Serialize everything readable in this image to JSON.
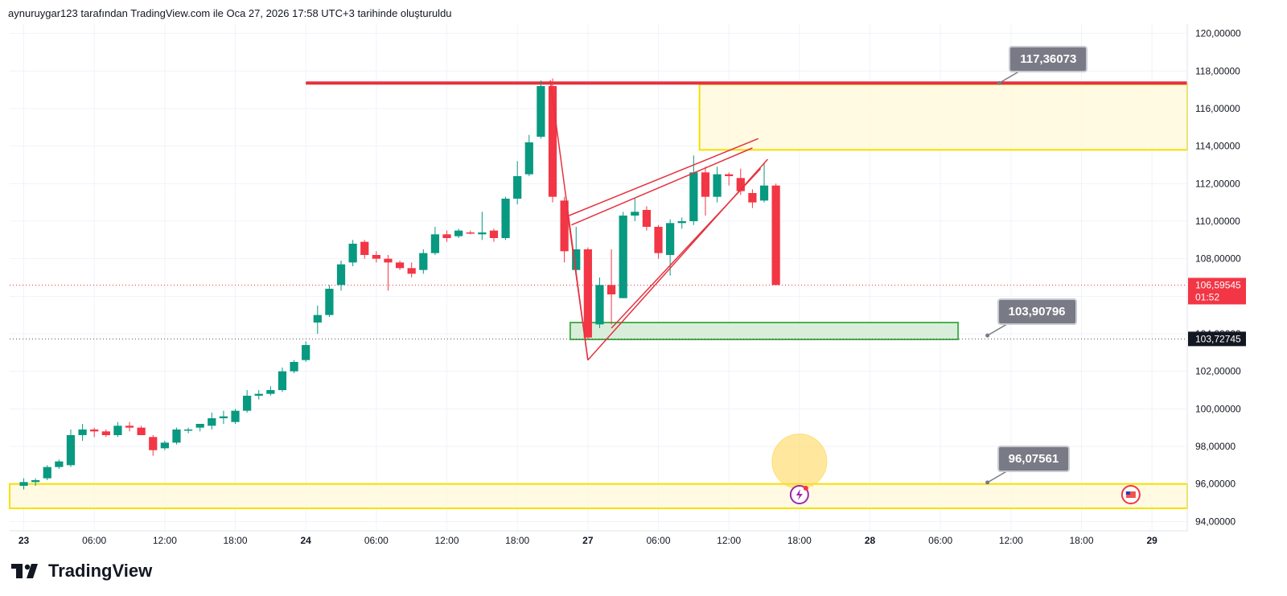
{
  "header": {
    "text": "aynuruygar123 tarafından TradingView.com ile Oca 27, 2026 17:58 UTC+3 tarihinde oluşturuldu"
  },
  "footer": {
    "brand": "TradingView"
  },
  "colors": {
    "up": "#089981",
    "down": "#f23645",
    "zone_yellow": "#fff9dc",
    "zone_yellow_border": "#f5e000",
    "zone_green": "#d5ecd6",
    "zone_green_border": "#4caf50",
    "resistance": "#e5323f"
  },
  "chart_data": {
    "type": "candlestick",
    "ylim": [
      93.5,
      120.5
    ],
    "price_ticks": [
      "120,00000",
      "118,00000",
      "116,00000",
      "114,00000",
      "112,00000",
      "110,00000",
      "108,00000",
      "106,00000",
      "104,00000",
      "102,00000",
      "100,00000",
      "98,00000",
      "96,00000",
      "94,00000"
    ],
    "price_tick_values": [
      120,
      118,
      116,
      114,
      112,
      110,
      108,
      106,
      104,
      102,
      100,
      98,
      96,
      94
    ],
    "time_ticks": [
      {
        "label": "23",
        "day": true,
        "x": 0
      },
      {
        "label": "06:00",
        "x": 6
      },
      {
        "label": "12:00",
        "x": 12
      },
      {
        "label": "18:00",
        "x": 18
      },
      {
        "label": "24",
        "day": true,
        "x": 24
      },
      {
        "label": "06:00",
        "x": 30
      },
      {
        "label": "12:00",
        "x": 36
      },
      {
        "label": "18:00",
        "x": 42
      },
      {
        "label": "27",
        "day": true,
        "x": 48
      },
      {
        "label": "06:00",
        "x": 54
      },
      {
        "label": "12:00",
        "x": 60
      },
      {
        "label": "18:00",
        "x": 66
      },
      {
        "label": "28",
        "day": true,
        "x": 72
      },
      {
        "label": "06:00",
        "x": 78
      },
      {
        "label": "12:00",
        "x": 84
      },
      {
        "label": "18:00",
        "x": 90
      },
      {
        "label": "29",
        "day": true,
        "x": 96
      }
    ],
    "xlim": [
      -1.2,
      99
    ],
    "candles": [
      {
        "x": 0,
        "o": 95.9,
        "h": 96.3,
        "l": 95.7,
        "c": 96.1
      },
      {
        "x": 1,
        "o": 96.1,
        "h": 96.3,
        "l": 95.9,
        "c": 96.2
      },
      {
        "x": 2,
        "o": 96.3,
        "h": 97.0,
        "l": 96.2,
        "c": 96.9
      },
      {
        "x": 3,
        "o": 96.9,
        "h": 97.3,
        "l": 96.8,
        "c": 97.2
      },
      {
        "x": 4,
        "o": 97.0,
        "h": 98.9,
        "l": 96.9,
        "c": 98.6
      },
      {
        "x": 5,
        "o": 98.6,
        "h": 99.2,
        "l": 98.3,
        "c": 98.9
      },
      {
        "x": 6,
        "o": 98.9,
        "h": 99.0,
        "l": 98.5,
        "c": 98.8
      },
      {
        "x": 7,
        "o": 98.8,
        "h": 98.9,
        "l": 98.5,
        "c": 98.6
      },
      {
        "x": 8,
        "o": 98.6,
        "h": 99.3,
        "l": 98.5,
        "c": 99.1
      },
      {
        "x": 9,
        "o": 99.1,
        "h": 99.3,
        "l": 98.8,
        "c": 99.0
      },
      {
        "x": 10,
        "o": 99.0,
        "h": 99.1,
        "l": 98.8,
        "c": 98.6
      },
      {
        "x": 11,
        "o": 98.5,
        "h": 98.6,
        "l": 97.5,
        "c": 97.8
      },
      {
        "x": 12,
        "o": 97.9,
        "h": 98.3,
        "l": 97.8,
        "c": 98.2
      },
      {
        "x": 13,
        "o": 98.2,
        "h": 99.0,
        "l": 98.1,
        "c": 98.9
      },
      {
        "x": 14,
        "o": 98.9,
        "h": 99.0,
        "l": 98.7,
        "c": 98.9
      },
      {
        "x": 15,
        "o": 99.0,
        "h": 99.2,
        "l": 98.8,
        "c": 99.2
      },
      {
        "x": 16,
        "o": 99.1,
        "h": 99.8,
        "l": 98.9,
        "c": 99.5
      },
      {
        "x": 17,
        "o": 99.5,
        "h": 99.9,
        "l": 99.2,
        "c": 99.6
      },
      {
        "x": 18,
        "o": 99.3,
        "h": 100.0,
        "l": 99.2,
        "c": 99.9
      },
      {
        "x": 19,
        "o": 99.9,
        "h": 101.0,
        "l": 99.8,
        "c": 100.7
      },
      {
        "x": 20,
        "o": 100.7,
        "h": 101.0,
        "l": 100.5,
        "c": 100.8
      },
      {
        "x": 21,
        "o": 100.8,
        "h": 101.2,
        "l": 100.7,
        "c": 101.0
      },
      {
        "x": 22,
        "o": 101.0,
        "h": 102.2,
        "l": 100.9,
        "c": 102.0
      },
      {
        "x": 23,
        "o": 102.0,
        "h": 102.6,
        "l": 101.9,
        "c": 102.5
      },
      {
        "x": 24,
        "o": 102.6,
        "h": 103.6,
        "l": 102.5,
        "c": 103.4
      },
      {
        "x": 25,
        "o": 104.6,
        "h": 105.5,
        "l": 104.0,
        "c": 105.0
      },
      {
        "x": 26,
        "o": 105.0,
        "h": 106.6,
        "l": 104.9,
        "c": 106.4
      },
      {
        "x": 27,
        "o": 106.6,
        "h": 107.9,
        "l": 106.3,
        "c": 107.7
      },
      {
        "x": 28,
        "o": 107.8,
        "h": 109.0,
        "l": 107.6,
        "c": 108.8
      },
      {
        "x": 29,
        "o": 108.9,
        "h": 109.0,
        "l": 108.0,
        "c": 108.2
      },
      {
        "x": 30,
        "o": 108.2,
        "h": 108.4,
        "l": 107.8,
        "c": 108.0
      },
      {
        "x": 31,
        "o": 108.0,
        "h": 108.2,
        "l": 106.3,
        "c": 107.8
      },
      {
        "x": 32,
        "o": 107.8,
        "h": 107.9,
        "l": 107.4,
        "c": 107.5
      },
      {
        "x": 33,
        "o": 107.5,
        "h": 107.8,
        "l": 107.0,
        "c": 107.2
      },
      {
        "x": 34,
        "o": 107.4,
        "h": 108.5,
        "l": 107.2,
        "c": 108.3
      },
      {
        "x": 35,
        "o": 108.3,
        "h": 109.7,
        "l": 108.2,
        "c": 109.3
      },
      {
        "x": 36,
        "o": 109.3,
        "h": 109.5,
        "l": 108.9,
        "c": 109.1
      },
      {
        "x": 37,
        "o": 109.2,
        "h": 109.6,
        "l": 109.1,
        "c": 109.5
      },
      {
        "x": 38,
        "o": 109.4,
        "h": 109.5,
        "l": 109.3,
        "c": 109.35
      },
      {
        "x": 39,
        "o": 109.3,
        "h": 110.5,
        "l": 109.0,
        "c": 109.4
      },
      {
        "x": 40,
        "o": 109.5,
        "h": 109.6,
        "l": 108.9,
        "c": 109.1
      },
      {
        "x": 41,
        "o": 109.1,
        "h": 111.3,
        "l": 109.0,
        "c": 111.2
      },
      {
        "x": 42,
        "o": 111.2,
        "h": 113.2,
        "l": 110.9,
        "c": 112.4
      },
      {
        "x": 43,
        "o": 112.5,
        "h": 114.6,
        "l": 112.4,
        "c": 114.2
      },
      {
        "x": 44,
        "o": 114.5,
        "h": 117.5,
        "l": 114.4,
        "c": 117.2
      },
      {
        "x": 45,
        "o": 117.2,
        "h": 117.6,
        "l": 111.0,
        "c": 111.3
      },
      {
        "x": 46,
        "o": 111.1,
        "h": 111.3,
        "l": 107.8,
        "c": 108.4
      },
      {
        "x": 47,
        "o": 107.4,
        "h": 109.7,
        "l": 107.3,
        "c": 108.5
      },
      {
        "x": 48,
        "o": 108.5,
        "h": 108.6,
        "l": 103.7,
        "c": 103.8
      },
      {
        "x": 49,
        "o": 104.5,
        "h": 107.0,
        "l": 104.3,
        "c": 106.6
      },
      {
        "x": 50,
        "o": 106.6,
        "h": 108.5,
        "l": 104.5,
        "c": 106.1
      },
      {
        "x": 51,
        "o": 105.9,
        "h": 110.5,
        "l": 105.9,
        "c": 110.3
      },
      {
        "x": 52,
        "o": 110.3,
        "h": 111.2,
        "l": 110.0,
        "c": 110.5
      },
      {
        "x": 53,
        "o": 110.6,
        "h": 110.8,
        "l": 109.5,
        "c": 109.7
      },
      {
        "x": 54,
        "o": 109.7,
        "h": 109.8,
        "l": 108.0,
        "c": 108.3
      },
      {
        "x": 55,
        "o": 108.2,
        "h": 110.1,
        "l": 107.1,
        "c": 109.9
      },
      {
        "x": 56,
        "o": 109.9,
        "h": 110.2,
        "l": 109.6,
        "c": 110.0
      },
      {
        "x": 57,
        "o": 110.0,
        "h": 113.5,
        "l": 109.8,
        "c": 112.6
      },
      {
        "x": 58,
        "o": 112.6,
        "h": 112.9,
        "l": 110.3,
        "c": 111.3
      },
      {
        "x": 59,
        "o": 111.3,
        "h": 112.9,
        "l": 111.0,
        "c": 112.5
      },
      {
        "x": 60,
        "o": 112.5,
        "h": 112.6,
        "l": 111.9,
        "c": 112.4
      },
      {
        "x": 61,
        "o": 112.3,
        "h": 112.8,
        "l": 111.4,
        "c": 111.6
      },
      {
        "x": 62,
        "o": 111.5,
        "h": 111.7,
        "l": 110.7,
        "c": 111.0
      },
      {
        "x": 63,
        "o": 111.1,
        "h": 113.1,
        "l": 111.0,
        "c": 111.9
      },
      {
        "x": 64,
        "o": 111.9,
        "h": 112.0,
        "l": 106.6,
        "c": 106.6
      }
    ],
    "resistance_line": {
      "price": 117.36073,
      "x_start": 24
    },
    "last_price_line": {
      "price": 106.59545
    },
    "support_dotted_line": {
      "price": 103.72745
    },
    "zones": [
      {
        "kind": "yellow",
        "x1": 57.5,
        "x2": 99,
        "p_top": 117.3,
        "p_bottom": 113.8
      },
      {
        "kind": "green",
        "x1": 46.5,
        "x2": 79.5,
        "p_top": 104.6,
        "p_bottom": 103.7
      },
      {
        "kind": "yellow",
        "x1": -1.2,
        "x2": 99,
        "p_top": 96.0,
        "p_bottom": 94.7
      }
    ],
    "triangle_lines": [
      {
        "x1": 44.8,
        "p1": 117.5,
        "x2": 48,
        "p2": 102.6
      },
      {
        "x1": 48,
        "p1": 102.6,
        "x2": 46.3,
        "p2": 110.3
      },
      {
        "x1": 46.4,
        "p1": 110.3,
        "x2": 62.5,
        "p2": 114.4
      },
      {
        "x1": 46.6,
        "p1": 109.8,
        "x2": 62,
        "p2": 113.9
      },
      {
        "x1": 48,
        "p1": 102.6,
        "x2": 63.3,
        "p2": 113.3
      },
      {
        "x1": 50,
        "p1": 104.3,
        "x2": 62.7,
        "p2": 112.8
      }
    ],
    "callouts": [
      {
        "label": "117,36073",
        "x": 83,
        "price": 117.36073
      },
      {
        "label": "103,90796",
        "x": 82,
        "price": 103.90796
      },
      {
        "label": "96,07561",
        "x": 82,
        "price": 96.07561
      }
    ],
    "price_tags": {
      "last": {
        "value": "106,59545",
        "countdown": "01:52"
      },
      "support": {
        "value": "103,72745"
      }
    },
    "highlight_circle": {
      "x": 66,
      "price": 97.2
    }
  }
}
